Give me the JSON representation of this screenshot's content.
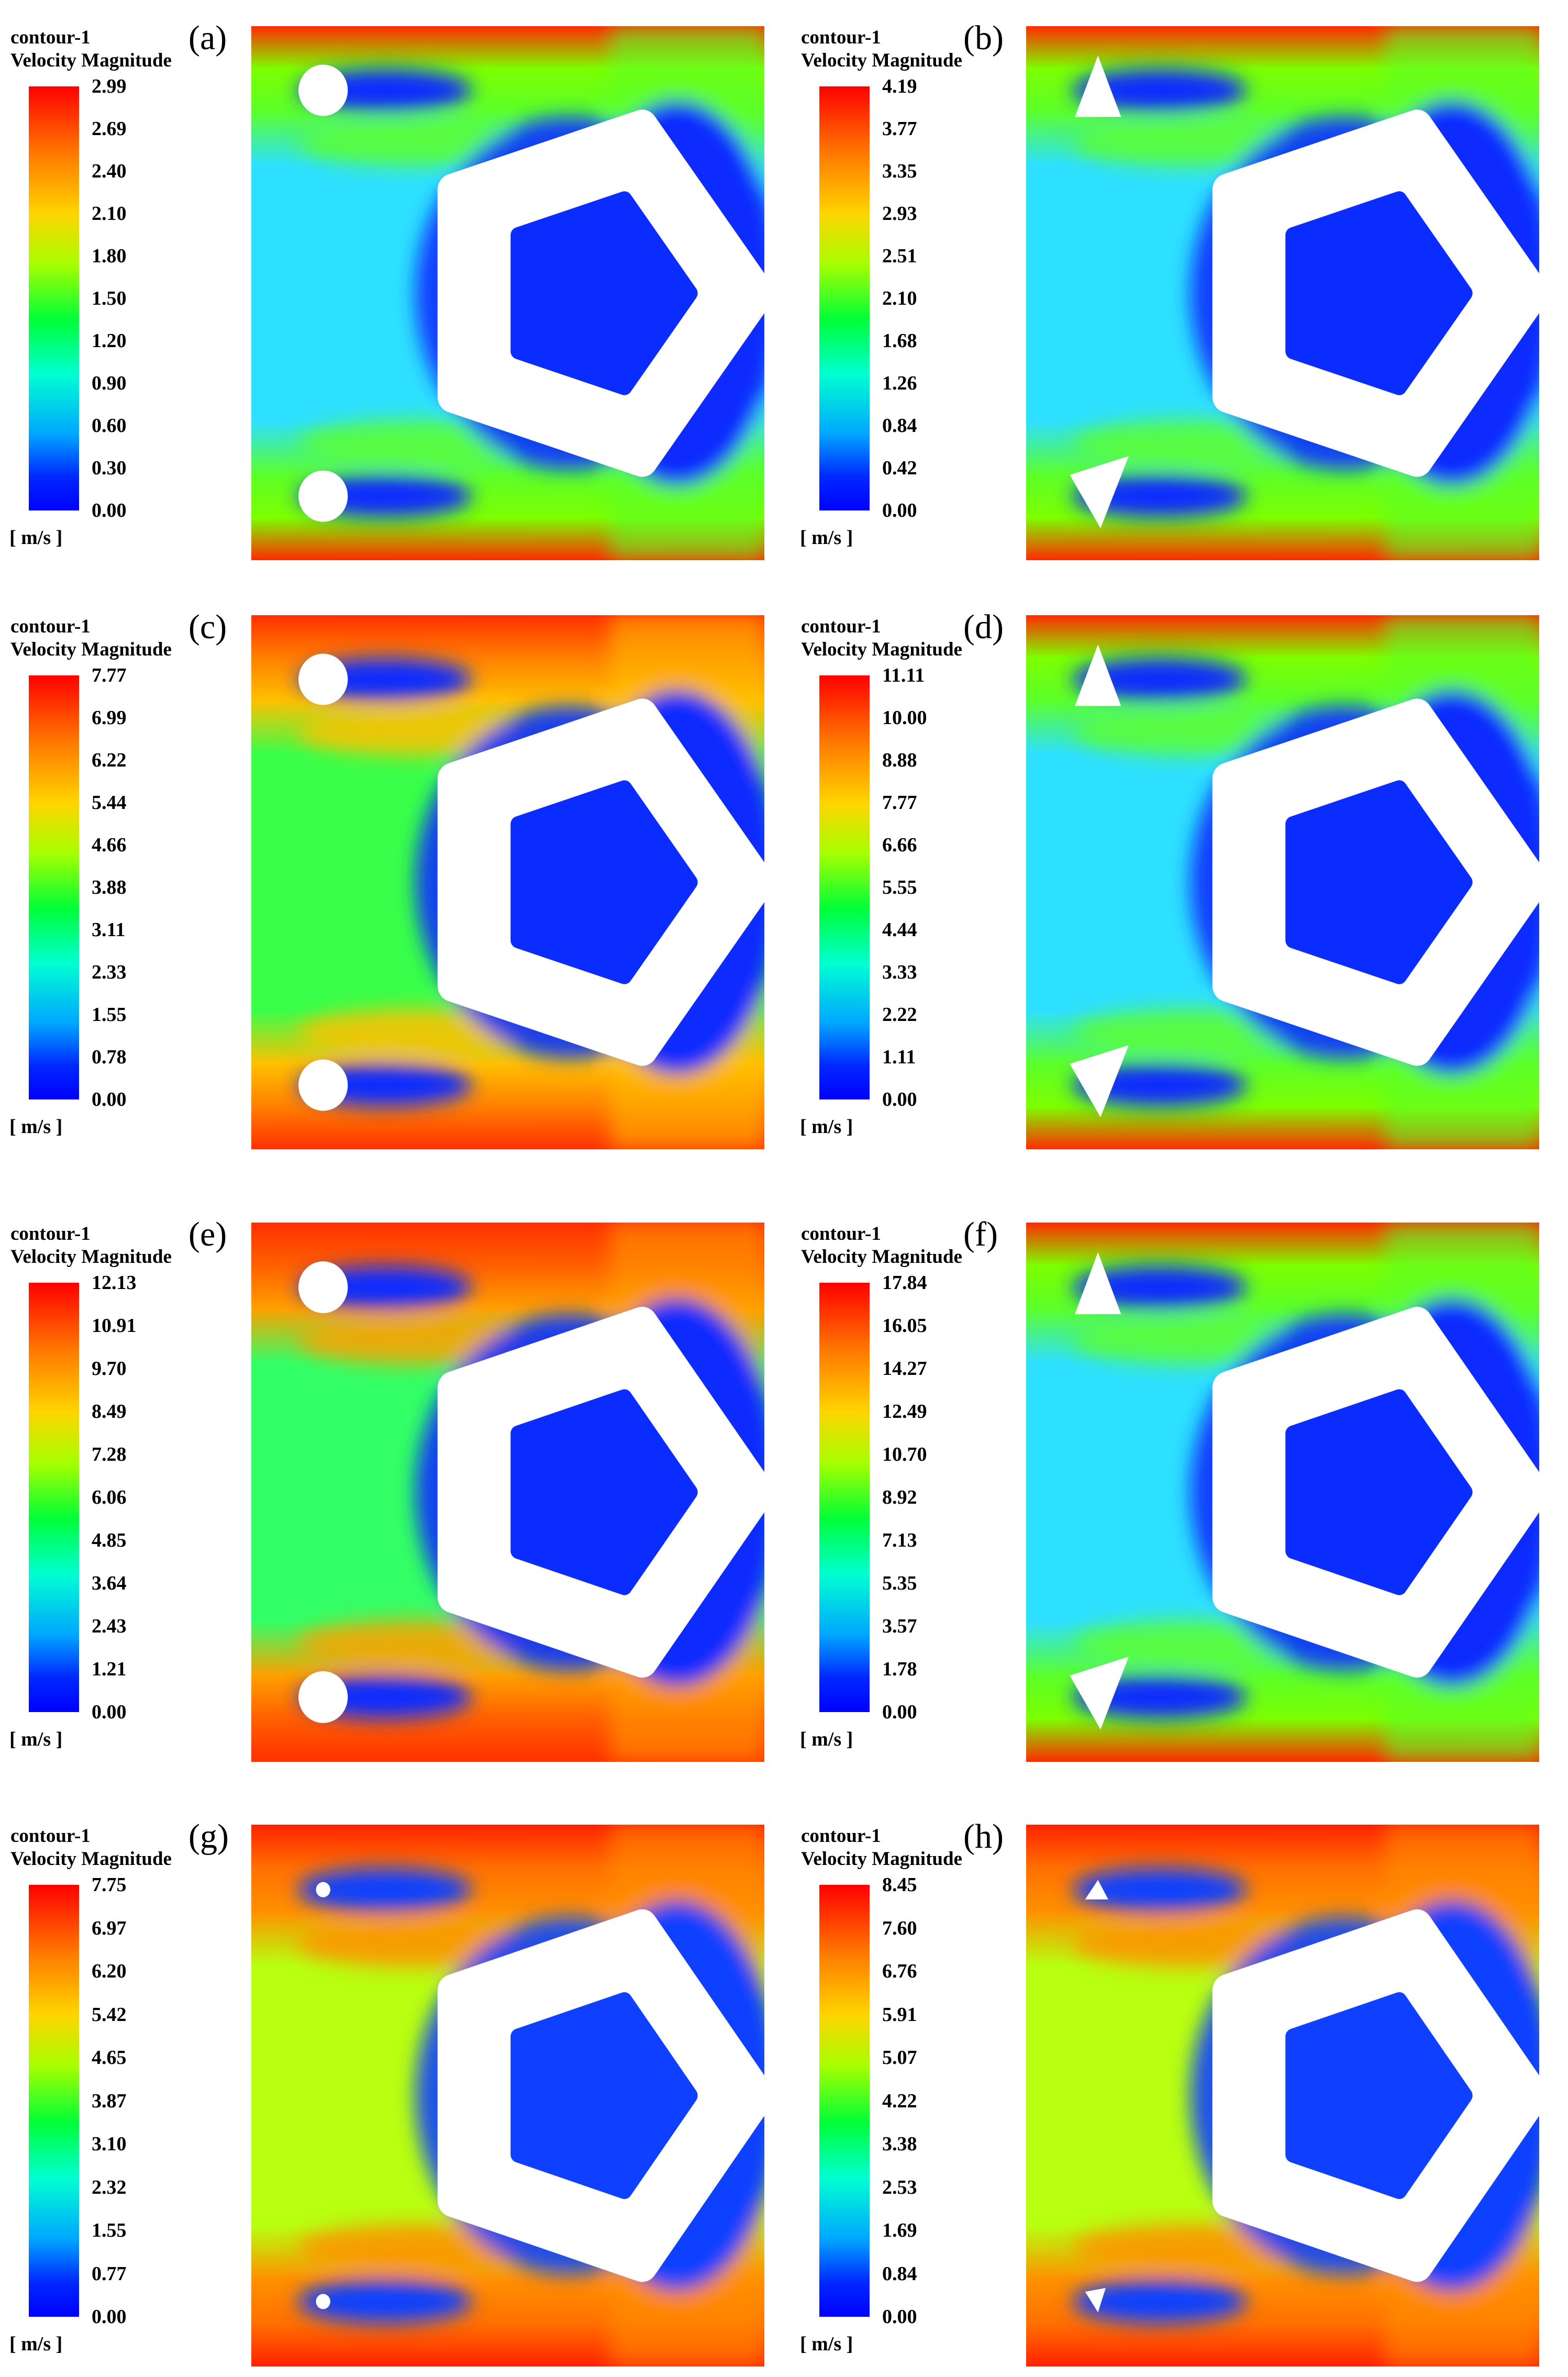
{
  "legend_title_line1": "contour-1",
  "legend_title_line2": "Velocity Magnitude",
  "unit": "[ m/s ]",
  "panels": [
    {
      "label": "(a)",
      "shape": "circle",
      "palette": "low",
      "ticks": [
        "2.99",
        "2.69",
        "2.40",
        "2.10",
        "1.80",
        "1.50",
        "1.20",
        "0.90",
        "0.60",
        "0.30",
        "0.00"
      ]
    },
    {
      "label": "(b)",
      "shape": "triangle",
      "palette": "low",
      "ticks": [
        "4.19",
        "3.77",
        "3.35",
        "2.93",
        "2.51",
        "2.10",
        "1.68",
        "1.26",
        "0.84",
        "0.42",
        "0.00"
      ]
    },
    {
      "label": "(c)",
      "shape": "circle",
      "palette": "mid",
      "ticks": [
        "7.77",
        "6.99",
        "6.22",
        "5.44",
        "4.66",
        "3.88",
        "3.11",
        "2.33",
        "1.55",
        "0.78",
        "0.00"
      ]
    },
    {
      "label": "(d)",
      "shape": "triangle",
      "palette": "low",
      "ticks": [
        "11.11",
        "10.00",
        "8.88",
        "7.77",
        "6.66",
        "5.55",
        "4.44",
        "3.33",
        "2.22",
        "1.11",
        "0.00"
      ]
    },
    {
      "label": "(e)",
      "shape": "circle",
      "palette": "high",
      "ticks": [
        "12.13",
        "10.91",
        "9.70",
        "8.49",
        "7.28",
        "6.06",
        "4.85",
        "3.64",
        "2.43",
        "1.21",
        "0.00"
      ]
    },
    {
      "label": "(f)",
      "shape": "triangle",
      "palette": "low",
      "ticks": [
        "17.84",
        "16.05",
        "14.27",
        "12.49",
        "10.70",
        "8.92",
        "7.13",
        "5.35",
        "3.57",
        "1.78",
        "0.00"
      ]
    },
    {
      "label": "(g)",
      "shape": "small-circle",
      "palette": "hot",
      "ticks": [
        "7.75",
        "6.97",
        "6.20",
        "5.42",
        "4.65",
        "3.87",
        "3.10",
        "2.32",
        "1.55",
        "0.77",
        "0.00"
      ]
    },
    {
      "label": "(h)",
      "shape": "small-triangle",
      "palette": "hot",
      "ticks": [
        "8.45",
        "7.60",
        "6.76",
        "5.91",
        "5.07",
        "4.22",
        "3.38",
        "2.53",
        "1.69",
        "0.84",
        "0.00"
      ]
    }
  ]
}
